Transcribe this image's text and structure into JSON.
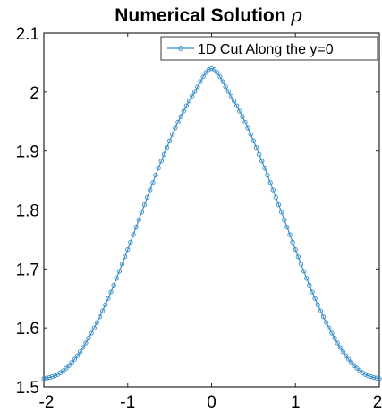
{
  "chart_data": {
    "type": "line",
    "title": "Numerical Solution ",
    "title_symbol": "ρ",
    "xlabel": "",
    "ylabel": "",
    "xlim": [
      -2,
      2
    ],
    "ylim": [
      1.5,
      2.1
    ],
    "x_ticks": [
      -2,
      -1,
      0,
      1,
      2
    ],
    "x_tick_labels": [
      "-2",
      "-1",
      "0",
      "1",
      "2"
    ],
    "y_ticks": [
      1.5,
      1.6,
      1.7,
      1.8,
      1.9,
      2.0,
      2.1
    ],
    "y_tick_labels": [
      "1.5",
      "1.6",
      "1.7",
      "1.8",
      "1.9",
      "2",
      "2.1"
    ],
    "grid": false,
    "legend_position": "top-right",
    "series": [
      {
        "name": "1D Cut Along the y=0",
        "color": "#3a8fc9",
        "marker": "circle",
        "x": [
          -2.0,
          -1.8,
          -1.6,
          -1.4,
          -1.2,
          -1.0,
          -0.8,
          -0.6,
          -0.4,
          -0.2,
          0.0,
          0.2,
          0.4,
          0.6,
          0.8,
          1.0,
          1.2,
          1.4,
          1.6,
          1.8,
          2.0
        ],
        "y": [
          1.514,
          1.524,
          1.553,
          1.6,
          1.661,
          1.733,
          1.809,
          1.883,
          1.949,
          2.001,
          2.04,
          2.001,
          1.949,
          1.883,
          1.809,
          1.733,
          1.661,
          1.6,
          1.553,
          1.524,
          1.514
        ]
      }
    ]
  }
}
